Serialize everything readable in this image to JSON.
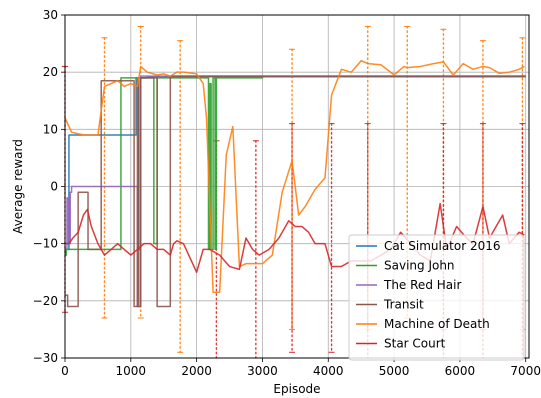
{
  "chart_data": {
    "type": "line",
    "title": "",
    "xlabel": "Episode",
    "ylabel": "Average reward",
    "xlim": [
      0,
      7050
    ],
    "ylim": [
      -30,
      30
    ],
    "xticks": [
      0,
      1000,
      2000,
      3000,
      4000,
      5000,
      6000,
      7000
    ],
    "yticks": [
      -30,
      -20,
      -10,
      0,
      10,
      20,
      30
    ],
    "grid": true,
    "legend_position": "lower-right",
    "series": [
      {
        "name": "Cat Simulator 2016",
        "color": "#1f77b4",
        "style": "step",
        "x": [
          0,
          60,
          100,
          500,
          550,
          620,
          700,
          800,
          850,
          1050,
          1080,
          1120,
          1150,
          1180,
          1250,
          1300,
          2000,
          3000,
          4000,
          5000,
          6000,
          7000
        ],
        "y": [
          -11,
          9,
          9,
          9,
          9,
          9,
          9,
          9,
          9,
          9,
          19,
          -11,
          19,
          19,
          19.2,
          19.2,
          19.2,
          19.2,
          19.2,
          19.2,
          19.2,
          19.2
        ]
      },
      {
        "name": "Saving John",
        "color": "#2ca02c",
        "style": "step",
        "x": [
          0,
          20,
          80,
          300,
          480,
          520,
          800,
          850,
          900,
          1150,
          1180,
          1200,
          1250,
          1300,
          1350,
          1400,
          1450,
          1500,
          2000,
          2150,
          2180,
          2200,
          2220,
          2250,
          2280,
          2300,
          2400,
          2700,
          3000,
          5000,
          7000
        ],
        "y": [
          -12,
          -11,
          -11,
          -11,
          -11,
          -11,
          -11,
          19,
          19,
          19,
          19,
          19,
          19,
          19,
          -10,
          19,
          19,
          19,
          19,
          19,
          -11,
          18,
          -11,
          19,
          -11,
          19,
          19,
          19,
          19.2,
          19.2,
          19.2
        ]
      },
      {
        "name": "The Red Hair",
        "color": "#9467bd",
        "style": "step",
        "x": [
          0,
          30,
          50,
          80,
          100,
          300,
          500,
          1000,
          1050,
          1100,
          1150,
          2000,
          3000,
          4000,
          5000,
          6000,
          7000
        ],
        "y": [
          -11,
          -2,
          -10,
          -1,
          0,
          0,
          0,
          0,
          0,
          -21,
          19.3,
          19.3,
          19.3,
          19.3,
          19.3,
          19.3,
          19.3
        ]
      },
      {
        "name": "Transit",
        "color": "#8c564b",
        "style": "step",
        "x": [
          0,
          40,
          150,
          200,
          300,
          350,
          450,
          500,
          550,
          600,
          800,
          1000,
          1050,
          1100,
          1120,
          1150,
          1200,
          1400,
          1550,
          1600,
          1650,
          1700,
          2000,
          3000,
          4000,
          5000,
          6000,
          7000
        ],
        "y": [
          -19,
          -21,
          -21,
          -1,
          -1,
          -11,
          -11,
          -11,
          18.5,
          18.5,
          18.5,
          18.5,
          -21,
          18.7,
          -21,
          19,
          19,
          -21,
          -21,
          19.3,
          19.3,
          19.3,
          19.3,
          19.3,
          19.3,
          19.3,
          19.3,
          19.3
        ]
      },
      {
        "name": "Machine of Death",
        "color": "#ff7f0e",
        "style": "line",
        "x": [
          0,
          100,
          200,
          300,
          400,
          500,
          600,
          700,
          800,
          900,
          1000,
          1100,
          1150,
          1250,
          1400,
          1500,
          1600,
          1700,
          1800,
          2000,
          2100,
          2150,
          2250,
          2350,
          2450,
          2550,
          2650,
          2750,
          2850,
          3000,
          3150,
          3300,
          3450,
          3550,
          3650,
          3800,
          3950,
          4050,
          4200,
          4350,
          4500,
          4600,
          4800,
          5000,
          5150,
          5200,
          5400,
          5600,
          5750,
          5900,
          6050,
          6200,
          6350,
          6450,
          6600,
          6750,
          6900,
          6980
        ],
        "y": [
          12,
          9.5,
          9.2,
          9,
          9,
          9,
          17.5,
          18,
          18.5,
          17.5,
          18,
          17.5,
          21,
          20,
          19.5,
          19.7,
          19.3,
          20,
          20,
          19.7,
          18,
          12,
          -18.5,
          -18.5,
          5.5,
          10.5,
          -14,
          -13.5,
          -13.5,
          -13.5,
          -12,
          -1,
          4.5,
          -5,
          -3.5,
          -0.5,
          1.5,
          16,
          20.5,
          20,
          22,
          21.5,
          21.3,
          19.5,
          21,
          20.8,
          21,
          21.5,
          21.8,
          19.5,
          21.5,
          20.5,
          21,
          20.8,
          19.8,
          20,
          20.5,
          21
        ]
      },
      {
        "name": "Star Court",
        "color": "#d62728",
        "style": "line",
        "x": [
          0,
          60,
          120,
          200,
          280,
          340,
          400,
          500,
          600,
          700,
          800,
          900,
          1000,
          1100,
          1200,
          1300,
          1400,
          1500,
          1600,
          1650,
          1700,
          1800,
          2000,
          2100,
          2200,
          2350,
          2500,
          2650,
          2750,
          2850,
          2950,
          3100,
          3250,
          3400,
          3500,
          3600,
          3700,
          3800,
          3950,
          4050,
          4200,
          4350,
          4500,
          4650,
          4800,
          4950,
          5100,
          5250,
          5400,
          5550,
          5700,
          5800,
          5950,
          6100,
          6200,
          6350,
          6450,
          6550,
          6650,
          6750,
          6900,
          6980
        ],
        "y": [
          -10,
          -10,
          -9,
          -8,
          -5,
          -4,
          -7,
          -10,
          -12,
          -11,
          -10,
          -11,
          -12,
          -11,
          -10,
          -10,
          -11,
          -11,
          -12,
          -10,
          -9.5,
          -10,
          -15,
          -11,
          -11,
          -12,
          -14,
          -14.5,
          -9,
          -11,
          -12,
          -11,
          -9,
          -6,
          -7,
          -7,
          -8,
          -10,
          -10,
          -14,
          -14,
          -13,
          -13,
          -13,
          -12,
          -11,
          -8,
          -10,
          -12,
          -13,
          -3,
          -11,
          -7,
          -9,
          -10,
          -3.5,
          -9,
          -7,
          -5,
          -10,
          -8,
          -8.5
        ]
      }
    ],
    "error_bars": [
      {
        "series": "Machine of Death",
        "color": "#ff7f0e",
        "x": [
          600,
          1150,
          1750,
          3450,
          4600,
          5200,
          5750,
          6350,
          6950
        ],
        "low": [
          -23,
          -23,
          -29,
          -25,
          -25,
          -23,
          -25,
          -25,
          -25
        ],
        "high": [
          26,
          28,
          25.5,
          24,
          28,
          28,
          27.5,
          25.5,
          26
        ]
      },
      {
        "series": "Star Court",
        "color": "#d62728",
        "x": [
          0,
          2300,
          2900,
          3450,
          4050,
          4600,
          5750,
          6350,
          6950
        ],
        "low": [
          -22,
          -30,
          -30,
          -29,
          -29,
          -30,
          -30,
          -30,
          -30
        ],
        "high": [
          21,
          8,
          8,
          11,
          11,
          11,
          11,
          11,
          11
        ]
      }
    ]
  }
}
